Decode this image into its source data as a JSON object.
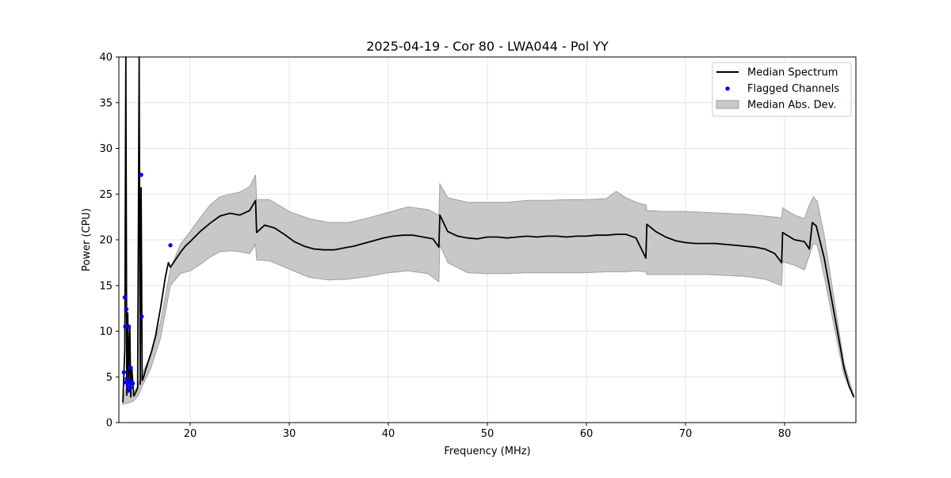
{
  "chart_data": {
    "type": "line",
    "title": "2025-04-19 - Cor 80 - LWA044 - Pol YY",
    "xlabel": "Frequency (MHz)",
    "ylabel": "Power (CPU)",
    "xlim": [
      12.8,
      87.2
    ],
    "ylim": [
      0,
      40
    ],
    "xticks": [
      20,
      30,
      40,
      50,
      60,
      70,
      80
    ],
    "yticks": [
      0,
      5,
      10,
      15,
      20,
      25,
      30,
      35,
      40
    ],
    "grid": true,
    "legend_position": "top-right",
    "colors": {
      "median": "#000000",
      "flagged": "#0000ff",
      "band_fill": "#c8c8c8",
      "band_edge": "#a0a0a0",
      "grid": "#e6e6e6"
    },
    "series": [
      {
        "name": "Median Spectrum",
        "kind": "line",
        "x": [
          13.2,
          13.4,
          13.5,
          13.6,
          13.7,
          13.8,
          13.9,
          14.0,
          14.1,
          14.3,
          14.5,
          14.7,
          14.85,
          14.95,
          15.05,
          15.15,
          15.3,
          15.5,
          15.8,
          16.1,
          16.5,
          17.0,
          17.5,
          17.8,
          18.0,
          18.5,
          19.0,
          19.5,
          20.0,
          21.0,
          22.0,
          23.0,
          24.0,
          25.0,
          26.0,
          26.6,
          26.7,
          27.5,
          28.5,
          29.5,
          30.5,
          31.5,
          32.5,
          33.5,
          34.5,
          35.5,
          36.5,
          37.5,
          38.5,
          39.5,
          40.5,
          41.5,
          42.5,
          43.5,
          44.5,
          45.1,
          45.2,
          46.0,
          47.0,
          48.0,
          49.0,
          50.0,
          51.0,
          52.0,
          53.0,
          54.0,
          55.0,
          56.0,
          57.0,
          58.0,
          59.0,
          60.0,
          61.0,
          62.0,
          63.0,
          64.0,
          65.0,
          66.0,
          66.1,
          67.0,
          68.0,
          69.0,
          70.0,
          71.0,
          72.0,
          73.0,
          74.0,
          75.0,
          76.0,
          77.0,
          78.0,
          79.0,
          79.7,
          79.8,
          81.0,
          82.0,
          82.5,
          82.8,
          83.2,
          84.0,
          85.0,
          86.0,
          86.5,
          87.0
        ],
        "y": [
          2.2,
          8.0,
          40.0,
          3.0,
          12.0,
          4.0,
          10.5,
          2.8,
          6.0,
          2.9,
          3.3,
          3.8,
          40.0,
          4.2,
          25.7,
          4.6,
          5.0,
          5.8,
          6.8,
          7.8,
          9.5,
          12.5,
          16.0,
          17.5,
          17.0,
          17.8,
          18.6,
          19.3,
          19.8,
          20.9,
          21.8,
          22.6,
          22.9,
          22.7,
          23.2,
          24.3,
          20.8,
          21.6,
          21.3,
          20.6,
          19.8,
          19.3,
          19.0,
          18.9,
          18.9,
          19.1,
          19.3,
          19.6,
          19.9,
          20.2,
          20.4,
          20.5,
          20.5,
          20.3,
          20.1,
          19.2,
          22.7,
          20.9,
          20.4,
          20.2,
          20.1,
          20.3,
          20.3,
          20.2,
          20.3,
          20.4,
          20.3,
          20.4,
          20.4,
          20.3,
          20.4,
          20.4,
          20.5,
          20.5,
          20.6,
          20.6,
          20.2,
          18.0,
          21.7,
          20.9,
          20.3,
          19.9,
          19.7,
          19.6,
          19.6,
          19.6,
          19.5,
          19.4,
          19.3,
          19.2,
          19.0,
          18.5,
          17.5,
          20.8,
          20.0,
          19.8,
          19.0,
          21.9,
          21.5,
          18.0,
          12.0,
          6.0,
          4.0,
          2.8
        ]
      },
      {
        "name": "Flagged Channels",
        "kind": "scatter",
        "x": [
          13.3,
          13.4,
          13.45,
          13.5,
          13.55,
          13.6,
          13.65,
          13.7,
          13.75,
          13.8,
          13.85,
          13.9,
          13.95,
          14.0,
          14.1,
          14.2,
          15.05,
          15.1,
          18.0
        ],
        "y": [
          5.5,
          13.7,
          10.5,
          4.4,
          12.4,
          4.8,
          10.5,
          4.0,
          3.5,
          10.5,
          4.4,
          6.0,
          3.8,
          6.0,
          4.4,
          4.3,
          27.1,
          11.6,
          19.4
        ]
      },
      {
        "name": "Median Abs. Dev.",
        "kind": "band",
        "x": [
          13.2,
          13.6,
          13.9,
          14.3,
          14.8,
          15.0,
          15.2,
          15.5,
          16.0,
          17.0,
          18.0,
          19.0,
          20.0,
          21.0,
          22.0,
          23.0,
          24.0,
          25.0,
          26.0,
          26.6,
          26.7,
          28.0,
          30.0,
          32.0,
          34.0,
          36.0,
          38.0,
          40.0,
          42.0,
          44.0,
          45.1,
          45.2,
          46.0,
          48.0,
          50.0,
          52.0,
          54.0,
          56.0,
          58.0,
          60.0,
          62.0,
          63.0,
          64.0,
          65.0,
          66.0,
          66.1,
          68.0,
          70.0,
          72.0,
          74.0,
          76.0,
          78.0,
          79.7,
          79.8,
          81.0,
          82.0,
          82.5,
          82.9,
          83.3,
          84.0,
          85.0,
          86.0,
          87.0
        ],
        "upper": [
          2.5,
          4.0,
          3.3,
          3.3,
          4.2,
          5.0,
          5.4,
          6.2,
          7.3,
          11.0,
          16.8,
          19.5,
          20.9,
          22.4,
          23.8,
          24.7,
          25.0,
          25.2,
          25.8,
          27.1,
          24.4,
          24.4,
          23.1,
          22.3,
          21.9,
          21.9,
          22.4,
          23.0,
          23.6,
          23.3,
          22.7,
          26.1,
          24.6,
          24.1,
          24.1,
          24.1,
          24.3,
          24.3,
          24.4,
          24.4,
          24.5,
          25.3,
          24.6,
          24.1,
          23.8,
          23.2,
          23.1,
          23.1,
          23.0,
          22.9,
          22.8,
          22.6,
          22.4,
          23.5,
          22.7,
          22.3,
          23.8,
          24.7,
          24.2,
          20.5,
          13.5,
          6.5,
          2.9
        ],
        "lower": [
          2.0,
          2.1,
          2.2,
          2.4,
          3.0,
          3.6,
          4.1,
          4.8,
          5.9,
          9.2,
          15.0,
          16.3,
          16.6,
          17.3,
          18.1,
          18.7,
          18.8,
          18.7,
          18.5,
          19.5,
          17.8,
          17.7,
          16.8,
          15.9,
          15.6,
          15.7,
          16.0,
          16.4,
          16.6,
          16.3,
          15.4,
          19.5,
          17.5,
          16.4,
          16.3,
          16.3,
          16.4,
          16.4,
          16.4,
          16.4,
          16.5,
          16.5,
          16.5,
          16.6,
          16.5,
          16.2,
          16.2,
          16.2,
          16.2,
          16.1,
          16.0,
          15.7,
          15.0,
          17.6,
          17.2,
          16.7,
          18.3,
          19.6,
          19.4,
          16.0,
          10.5,
          5.2,
          2.7
        ]
      }
    ]
  }
}
